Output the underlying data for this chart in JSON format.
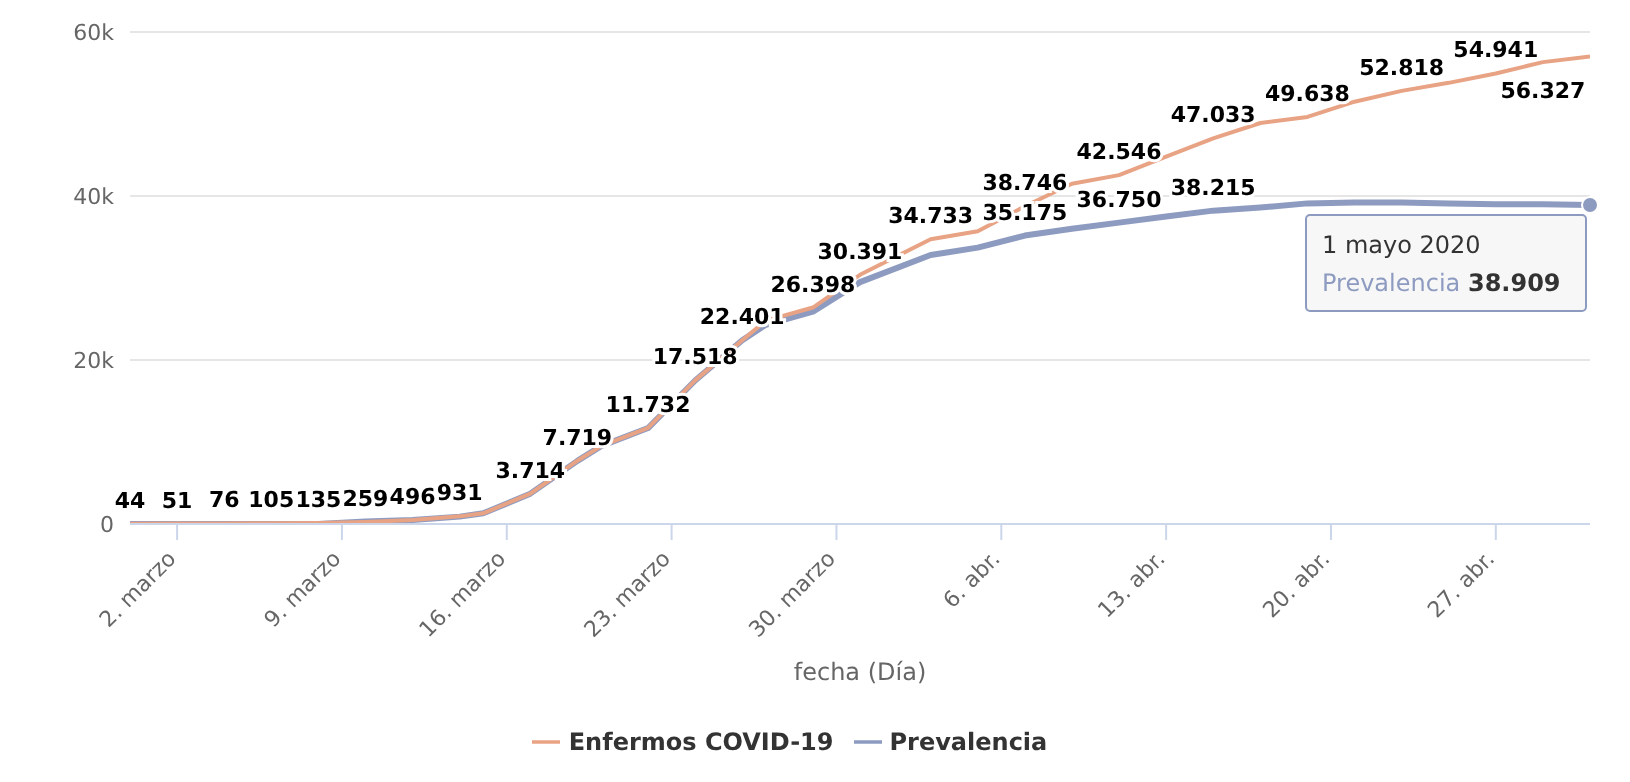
{
  "chart_data": {
    "type": "line",
    "xlabel": "fecha (Día)",
    "x": [
      "2020-02-29",
      "2020-03-02",
      "2020-03-04",
      "2020-03-06",
      "2020-03-08",
      "2020-03-10",
      "2020-03-12",
      "2020-03-14",
      "2020-03-15",
      "2020-03-17",
      "2020-03-19",
      "2020-03-20",
      "2020-03-22",
      "2020-03-24",
      "2020-03-26",
      "2020-03-27",
      "2020-03-29",
      "2020-03-31",
      "2020-04-03",
      "2020-04-05",
      "2020-04-07",
      "2020-04-09",
      "2020-04-11",
      "2020-04-13",
      "2020-04-15",
      "2020-04-17",
      "2020-04-19",
      "2020-04-21",
      "2020-04-23",
      "2020-04-25",
      "2020-04-27",
      "2020-04-29",
      "2020-05-01"
    ],
    "series": [
      {
        "name": "Enfermos COVID-19",
        "color": "#e8a385",
        "values": [
          44,
          51,
          76,
          105,
          135,
          259,
          496,
          931,
          1300,
          3714,
          7719,
          9500,
          11732,
          17518,
          22401,
          24800,
          26398,
          30391,
          34733,
          35700,
          38746,
          41500,
          42546,
          44800,
          47033,
          48900,
          49638,
          51500,
          52818,
          53800,
          54941,
          56327,
          57000
        ],
        "value_labels": [
          "44",
          "51",
          "76",
          "105",
          "135",
          "259",
          "496",
          "931",
          null,
          "3.714",
          "7.719",
          null,
          "11.732",
          "17.518",
          "22.401",
          null,
          "26.398",
          "30.391",
          "34.733",
          null,
          "38.746",
          null,
          "42.546",
          null,
          "47.033",
          null,
          "49.638",
          null,
          "52.818",
          null,
          "54.941",
          "56.327",
          null
        ]
      },
      {
        "name": "Prevalencia",
        "color": "#8e9bc0",
        "values": [
          0,
          0,
          0,
          0,
          0,
          300,
          500,
          900,
          1300,
          3700,
          7700,
          9500,
          11700,
          17500,
          22400,
          24300,
          25900,
          29500,
          32800,
          33700,
          35175,
          36000,
          36750,
          37500,
          38215,
          38600,
          39100,
          39200,
          39200,
          39100,
          39000,
          39000,
          38909
        ],
        "value_labels": [
          null,
          null,
          null,
          null,
          null,
          null,
          null,
          null,
          null,
          null,
          null,
          null,
          null,
          null,
          null,
          null,
          null,
          null,
          null,
          null,
          "35.175",
          null,
          "36.750",
          null,
          "38.215",
          null,
          null,
          null,
          null,
          null,
          null,
          null,
          null
        ]
      }
    ],
    "xlim": [
      "2020-02-29",
      "2020-05-01"
    ],
    "xticks": [
      {
        "value": "2020-03-02",
        "label": "2. marzo"
      },
      {
        "value": "2020-03-09",
        "label": "9. marzo"
      },
      {
        "value": "2020-03-16",
        "label": "16. marzo"
      },
      {
        "value": "2020-03-23",
        "label": "23. marzo"
      },
      {
        "value": "2020-03-30",
        "label": "30. marzo"
      },
      {
        "value": "2020-04-06",
        "label": "6. abr."
      },
      {
        "value": "2020-04-13",
        "label": "13. abr."
      },
      {
        "value": "2020-04-20",
        "label": "20. abr."
      },
      {
        "value": "2020-04-27",
        "label": "27. abr."
      }
    ],
    "ylim": [
      0,
      60000
    ],
    "yticks": [
      {
        "value": 0,
        "label": "0"
      },
      {
        "value": 20000,
        "label": "20k"
      },
      {
        "value": 40000,
        "label": "40k"
      },
      {
        "value": 60000,
        "label": "60k"
      }
    ],
    "grid": "y",
    "legend": "bottom",
    "marker": "none",
    "line_style": "solid",
    "annotations": [
      {
        "text": "1 mayo 2020\nPrevalencia 38.909",
        "x": "2020-05-01",
        "y": 38909
      }
    ]
  }
}
